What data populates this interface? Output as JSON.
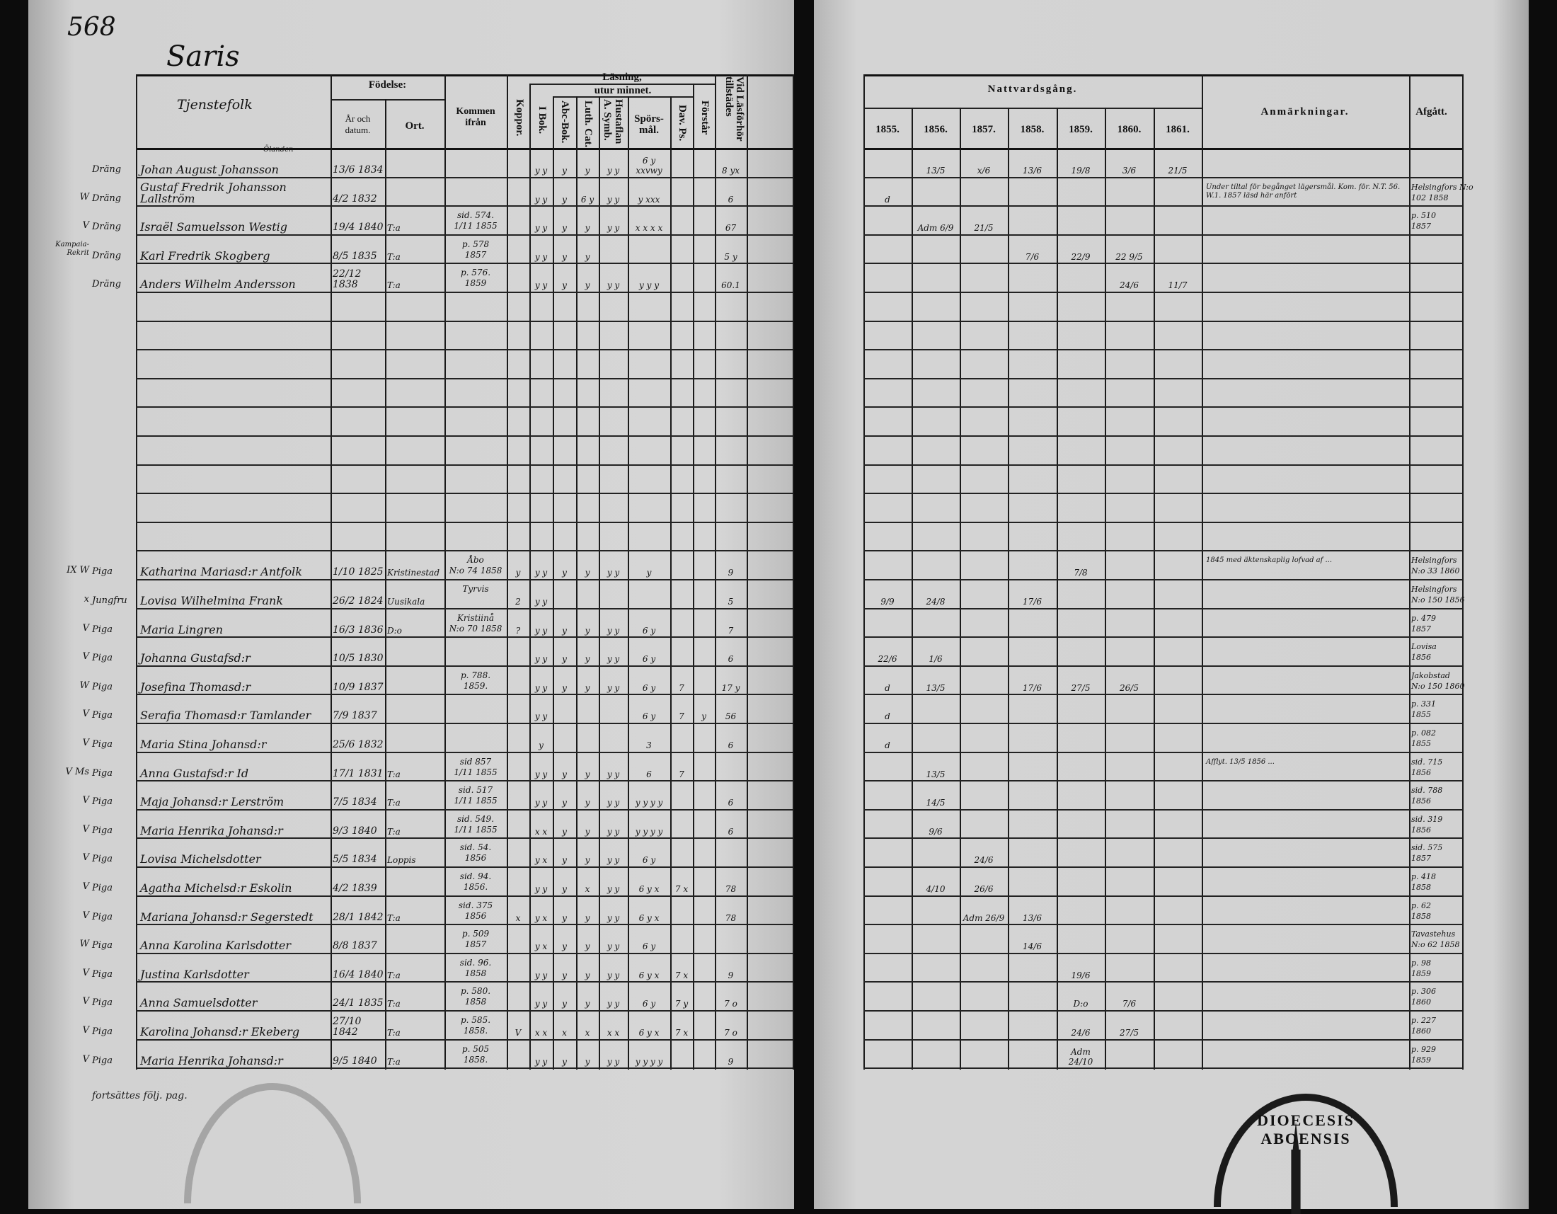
{
  "page_number": "568",
  "parish_title": "Saris",
  "footer_note": "fortsättes följ. pag.",
  "stamp_text": "DIOECESIS ABOENSIS",
  "headers": {
    "name": "Tjenstefolk",
    "birth": "Födelse:",
    "birth_date": "År och datum.",
    "birth_place": "Ort.",
    "came_from": "Kommen ifrån",
    "smallpox": "Koppor.",
    "reading": "Läsning,",
    "by_heart": "utur minnet.",
    "in_book": "I Bok.",
    "abc_book": "Abc-Bok.",
    "luth_cat": "Luth. Cat.",
    "household": "Hustaflan A. Symb.",
    "questions": "Spörs-mål.",
    "psalms": "Dav. Ps.",
    "understands": "Förstår",
    "attendance": "Vid Läsförhör tillstädes",
    "communion": "Nattvardsgång.",
    "years": [
      "1855.",
      "1856.",
      "1857.",
      "1858.",
      "1859.",
      "1860.",
      "1861."
    ],
    "remarks": "Anmärkningar.",
    "departed": "Afgått."
  },
  "rows": [
    {
      "mark": "",
      "role": "Dräng",
      "name": "Johan August Johansson",
      "note": "Ölanden",
      "born": "13/6 1834",
      "place": "",
      "from": "",
      "reading": [
        "",
        "y y",
        "y",
        "y",
        "y y",
        "6 y xxvwy",
        "",
        "",
        "8 yx"
      ],
      "natt": [
        "",
        "13/5",
        "x/6",
        "13/6",
        "19/8",
        "3/6",
        "21/5"
      ],
      "remark": "",
      "departed": ""
    },
    {
      "mark": "W",
      "role": "Dräng",
      "name": "Gustaf Fredrik Johansson Lallström",
      "note": "",
      "born": "4/2 1832",
      "place": "",
      "from": "",
      "reading": [
        "",
        "y y",
        "y",
        "6 y",
        "y y",
        "y xxx",
        "",
        "",
        "6"
      ],
      "natt": [
        "d",
        "",
        "",
        "",
        "",
        "",
        ""
      ],
      "remark": "Under tiltal för begånget lägersmål. Kom. för. N.T. 56. W.1. 1857 läsd här anfört",
      "departed": "Helsingfors N:o 102 1858"
    },
    {
      "mark": "V",
      "role": "Dräng",
      "name": "Israël Samuelsson Westig",
      "note": "",
      "born": "19/4 1840",
      "place": "T:a",
      "from": "sid. 574.\n1/11 1855",
      "reading": [
        "",
        "y y",
        "y",
        "y",
        "y y",
        "x x x x",
        "",
        "",
        "67"
      ],
      "natt": [
        "",
        "Adm 6/9",
        "21/5",
        "",
        "",
        "",
        ""
      ],
      "remark": "",
      "departed": "p. 510\n1857"
    },
    {
      "mark": "Kampaia-Rekrit",
      "role": "Dräng",
      "name": "Karl Fredrik Skogberg",
      "note": "",
      "born": "8/5 1835",
      "place": "T:a",
      "from": "p. 578\n1857",
      "reading": [
        "",
        "y y",
        "y",
        "y",
        "",
        "",
        "",
        "",
        "5 y"
      ],
      "natt": [
        "",
        "",
        "",
        "7/6",
        "22/9",
        "22 9/5",
        ""
      ],
      "remark": "",
      "departed": ""
    },
    {
      "mark": "",
      "role": "Dräng",
      "name": "Anders Wilhelm Andersson",
      "note": "",
      "born": "22/12 1838",
      "place": "T:a",
      "from": "p. 576.\n1859",
      "reading": [
        "",
        "y y",
        "y",
        "y",
        "y y",
        "y y y",
        "",
        "",
        "60.1"
      ],
      "natt": [
        "",
        "",
        "",
        "",
        "",
        "24/6",
        "11/7"
      ],
      "remark": "",
      "departed": ""
    },
    {},
    {},
    {},
    {},
    {},
    {},
    {},
    {},
    {},
    {
      "mark": "IX W",
      "role": "Piga",
      "name": "Katharina Mariasd:r Antfolk",
      "note": "",
      "born": "1/10 1825",
      "place": "Kristinestad",
      "from": "Åbo\nN:o 74 1858",
      "reading": [
        "y",
        "y y",
        "y",
        "y",
        "y y",
        "y",
        "",
        "",
        "9"
      ],
      "natt": [
        "",
        "",
        "",
        "",
        "7/8",
        "",
        ""
      ],
      "remark": "1845 med äktenskaplig lofvad af ...",
      "departed": "Helsingfors\nN:o 33 1860"
    },
    {
      "mark": "x",
      "role": "Jungfru",
      "name": "Lovisa Wilhelmina Frank",
      "note": "",
      "born": "26/2 1824",
      "place": "Uusikala",
      "from": "Tyrvis",
      "reading": [
        "2",
        "y y",
        "",
        "",
        "",
        "",
        "",
        "",
        "5"
      ],
      "natt": [
        "9/9",
        "24/8",
        "",
        "17/6",
        "",
        "",
        ""
      ],
      "remark": "",
      "departed": "Helsingfors\nN:o 150 1856"
    },
    {
      "mark": "V",
      "role": "Piga",
      "name": "Maria Lingren",
      "note": "",
      "born": "16/3 1836",
      "place": "D:o",
      "from": "Kristiinå\nN:o 70 1858",
      "reading": [
        "?",
        "y y",
        "y",
        "y",
        "y y",
        "6 y",
        "",
        "",
        "7"
      ],
      "natt": [
        "",
        "",
        "",
        "",
        "",
        "",
        ""
      ],
      "remark": "",
      "departed": "p. 479\n1857"
    },
    {
      "mark": "V",
      "role": "Piga",
      "name": "Johanna Gustafsd:r",
      "note": "",
      "born": "10/5 1830",
      "place": "",
      "from": "",
      "reading": [
        "",
        "y y",
        "y",
        "y",
        "y y",
        "6 y",
        "",
        "",
        "6"
      ],
      "natt": [
        "22/6",
        "1/6",
        "",
        "",
        "",
        "",
        ""
      ],
      "remark": "",
      "departed": "Lovisa\n1856"
    },
    {
      "mark": "W",
      "role": "Piga",
      "name": "Josefina Thomasd:r",
      "note": "",
      "born": "10/9 1837",
      "place": "",
      "from": "p. 788.\n1859.",
      "reading": [
        "",
        "y y",
        "y",
        "y",
        "y y",
        "6 y",
        "7",
        "",
        "17 y"
      ],
      "natt": [
        "d",
        "13/5",
        "",
        "17/6",
        "27/5",
        "26/5",
        ""
      ],
      "remark": "",
      "departed": "Jakobstad\nN:o 150 1860"
    },
    {
      "mark": "V",
      "role": "Piga",
      "name": "Serafia Thomasd:r Tamlander",
      "note": "",
      "born": "7/9 1837",
      "place": "",
      "from": "",
      "reading": [
        "",
        "y y",
        "",
        "",
        "",
        "6 y",
        "7",
        "y",
        "56"
      ],
      "natt": [
        "d",
        "",
        "",
        "",
        "",
        "",
        ""
      ],
      "remark": "",
      "departed": "p. 331\n1855"
    },
    {
      "mark": "V",
      "role": "Piga",
      "name": "Maria Stina Johansd:r",
      "note": "",
      "born": "25/6 1832",
      "place": "",
      "from": "",
      "reading": [
        "",
        "y",
        "",
        "",
        "",
        "3",
        "",
        "",
        "6"
      ],
      "natt": [
        "d",
        "",
        "",
        "",
        "",
        "",
        ""
      ],
      "remark": "",
      "departed": "p. 082\n1855"
    },
    {
      "mark": "V Ms",
      "role": "Piga",
      "name": "Anna Gustafsd:r Id",
      "note": "",
      "born": "17/1 1831",
      "place": "T:a",
      "from": "sid 857\n1/11 1855",
      "reading": [
        "",
        "y y",
        "y",
        "y",
        "y y",
        "6",
        "7",
        "",
        ""
      ],
      "natt": [
        "",
        "13/5",
        "",
        "",
        "",
        "",
        ""
      ],
      "remark": "Afflyt. 13/5 1856 ...",
      "departed": "sid. 715\n1856"
    },
    {
      "mark": "V",
      "role": "Piga",
      "name": "Maja Johansd:r Lerström",
      "note": "",
      "born": "7/5 1834",
      "place": "T:a",
      "from": "sid. 517\n1/11 1855",
      "reading": [
        "",
        "y y",
        "y",
        "y",
        "y y",
        "y y y y",
        "",
        "",
        "6"
      ],
      "natt": [
        "",
        "14/5",
        "",
        "",
        "",
        "",
        ""
      ],
      "remark": "",
      "departed": "sid. 788\n1856"
    },
    {
      "mark": "V",
      "role": "Piga",
      "name": "Maria Henrika Johansd:r",
      "note": "",
      "born": "9/3 1840",
      "place": "T:a",
      "from": "sid. 549.\n1/11 1855",
      "reading": [
        "",
        "x x",
        "y",
        "y",
        "y y",
        "y y y y",
        "",
        "",
        "6"
      ],
      "natt": [
        "",
        "9/6",
        "",
        "",
        "",
        "",
        ""
      ],
      "remark": "",
      "departed": "sid. 319\n1856"
    },
    {
      "mark": "V",
      "role": "Piga",
      "name": "Lovisa Michelsdotter",
      "note": "",
      "born": "5/5 1834",
      "place": "Loppis",
      "from": "sid. 54.\n1856",
      "reading": [
        "",
        "y x",
        "y",
        "y",
        "y y",
        "6 y",
        "",
        "",
        ""
      ],
      "natt": [
        "",
        "",
        "24/6",
        "",
        "",
        "",
        ""
      ],
      "remark": "",
      "departed": "sid. 575\n1857"
    },
    {
      "mark": "V",
      "role": "Piga",
      "name": "Agatha Michelsd:r Eskolin",
      "note": "",
      "born": "4/2 1839",
      "place": "",
      "from": "sid. 94.\n1856.",
      "reading": [
        "",
        "y y",
        "y",
        "x",
        "y y",
        "6 y x",
        "7 x",
        "",
        "78"
      ],
      "natt": [
        "",
        "4/10",
        "26/6",
        "",
        "",
        "",
        ""
      ],
      "remark": "",
      "departed": "p. 418\n1858"
    },
    {
      "mark": "V",
      "role": "Piga",
      "name": "Mariana Johansd:r Segerstedt",
      "note": "",
      "born": "28/1 1842",
      "place": "T:a",
      "from": "sid. 375\n1856",
      "reading": [
        "x",
        "y x",
        "y",
        "y",
        "y y",
        "6 y x",
        "",
        "",
        "78"
      ],
      "natt": [
        "",
        "",
        "Adm 26/9",
        "13/6",
        "",
        "",
        ""
      ],
      "remark": "",
      "departed": "p. 62\n1858"
    },
    {
      "mark": "W",
      "role": "Piga",
      "name": "Anna Karolina Karlsdotter",
      "note": "",
      "born": "8/8 1837",
      "place": "",
      "from": "p. 509\n1857",
      "reading": [
        "",
        "y x",
        "y",
        "y",
        "y y",
        "6 y",
        "",
        "",
        ""
      ],
      "natt": [
        "",
        "",
        "",
        "14/6",
        "",
        "",
        ""
      ],
      "remark": "",
      "departed": "Tavastehus\nN:o 62 1858"
    },
    {
      "mark": "V",
      "role": "Piga",
      "name": "Justina Karlsdotter",
      "note": "",
      "born": "16/4 1840",
      "place": "T:a",
      "from": "sid. 96.\n1858",
      "reading": [
        "",
        "y y",
        "y",
        "y",
        "y y",
        "6 y x",
        "7 x",
        "",
        "9"
      ],
      "natt": [
        "",
        "",
        "",
        "",
        "19/6",
        "",
        ""
      ],
      "remark": "",
      "departed": "p. 98\n1859"
    },
    {
      "mark": "V",
      "role": "Piga",
      "name": "Anna Samuelsdotter",
      "note": "",
      "born": "24/1 1835",
      "place": "T:a",
      "from": "p. 580.\n1858",
      "reading": [
        "",
        "y y",
        "y",
        "y",
        "y y",
        "6 y",
        "7 y",
        "",
        "7 o"
      ],
      "natt": [
        "",
        "",
        "",
        "",
        "D:o",
        "7/6",
        ""
      ],
      "remark": "",
      "departed": "p. 306\n1860"
    },
    {
      "mark": "V",
      "role": "Piga",
      "name": "Karolina Johansd:r Ekeberg",
      "note": "",
      "born": "27/10 1842",
      "place": "T:a",
      "from": "p. 585.\n1858.",
      "reading": [
        "V",
        "x x",
        "x",
        "x",
        "x x",
        "6 y x",
        "7 x",
        "",
        "7 o"
      ],
      "natt": [
        "",
        "",
        "",
        "",
        "24/6",
        "27/5",
        ""
      ],
      "remark": "",
      "departed": "p. 227\n1860"
    },
    {
      "mark": "V",
      "role": "Piga",
      "name": "Maria Henrika Johansd:r",
      "note": "",
      "born": "9/5 1840",
      "place": "T:a",
      "from": "p. 505\n1858.",
      "reading": [
        "",
        "y y",
        "y",
        "y",
        "y y",
        "y y y y",
        "",
        "",
        "9"
      ],
      "natt": [
        "",
        "",
        "",
        "",
        "Adm 24/10",
        "",
        ""
      ],
      "remark": "",
      "departed": "p. 929\n1859"
    }
  ]
}
